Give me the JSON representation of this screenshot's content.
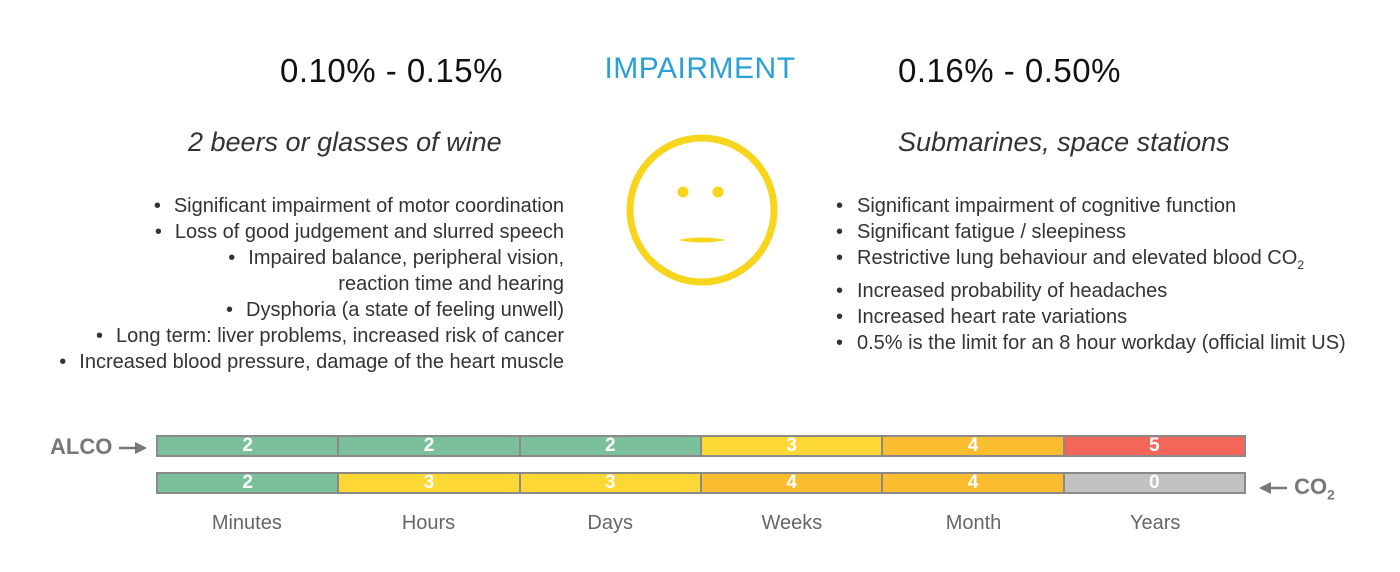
{
  "heading": "IMPAIRMENT",
  "left": {
    "range": "0.10% - 0.15%",
    "subtitle": "2 beers or glasses of wine",
    "items": [
      [
        "Significant impairment of motor coordination"
      ],
      [
        "Loss of good judgement and slurred speech"
      ],
      [
        "Impaired balance, peripheral vision,",
        "reaction time and hearing"
      ],
      [
        "Dysphoria (a state of feeling unwell)"
      ],
      [
        "Long term: liver problems, increased risk of cancer"
      ],
      [
        "Increased blood pressure, damage of the heart muscle"
      ]
    ]
  },
  "right": {
    "range": "0.16% - 0.50%",
    "subtitle": "Submarines, space stations",
    "items": [
      {
        "text": "Significant impairment of cognitive function"
      },
      {
        "text": "Significant fatigue / sleepiness"
      },
      {
        "text": "Restrictive lung behaviour and elevated blood CO",
        "sub": "2"
      },
      {
        "text": "Increased probability of headaches"
      },
      {
        "text": "Increased heart rate variations"
      },
      {
        "text": "0.5% is the limit for an 8 hour workday (official limit US)"
      }
    ]
  },
  "face": {
    "icon": "neutral-face-icon",
    "color": "#f7d51d"
  },
  "bars": {
    "alco": {
      "label": "ALCO",
      "values": [
        "2",
        "2",
        "2",
        "3",
        "4",
        "5"
      ],
      "colors": [
        "#7bc09a",
        "#7bc09a",
        "#7bc09a",
        "#fdd835",
        "#fbbd30",
        "#f46659"
      ]
    },
    "co2": {
      "label": "CO",
      "label_sub": "2",
      "values": [
        "2",
        "3",
        "3",
        "4",
        "4",
        "0"
      ],
      "colors": [
        "#7bc09a",
        "#fdd835",
        "#fdd835",
        "#fbbd30",
        "#fbbd30",
        "#c2c2c2"
      ]
    }
  },
  "timeline": [
    "Minutes",
    "Hours",
    "Days",
    "Weeks",
    "Month",
    "Years"
  ]
}
